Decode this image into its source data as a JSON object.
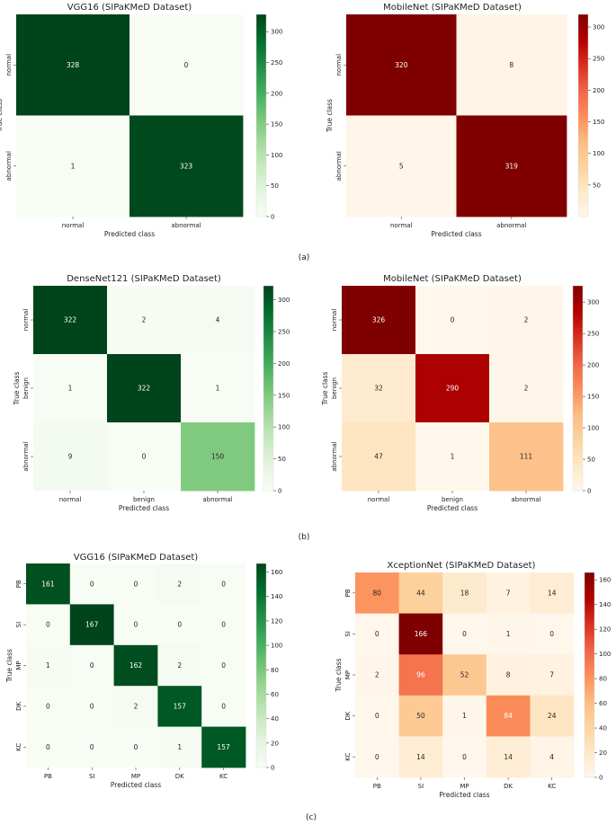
{
  "figure_labels": {
    "a": "(a)",
    "b": "(b)",
    "c": "(c)"
  },
  "chart_data": [
    {
      "type": "heatmap",
      "title": "VGG16 (SIPaKMeD Dataset)",
      "xlabel": "Predicted class",
      "ylabel": "True class",
      "x_categories": [
        "normal",
        "abnormal"
      ],
      "y_categories": [
        "normal",
        "abnormal"
      ],
      "values": [
        [
          328,
          0
        ],
        [
          1,
          323
        ]
      ],
      "colormap": "greens",
      "colorbar": {
        "range": [
          0,
          328
        ],
        "ticks": [
          0,
          50,
          100,
          150,
          200,
          250,
          300
        ]
      }
    },
    {
      "type": "heatmap",
      "title": "MobileNet (SIPaKMeD Dataset)",
      "xlabel": "Predicted class",
      "ylabel": "True class",
      "x_categories": [
        "normal",
        "abnormal"
      ],
      "y_categories": [
        "normal",
        "abnormal"
      ],
      "values": [
        [
          320,
          8
        ],
        [
          5,
          319
        ]
      ],
      "colormap": "oranges-red",
      "colorbar": {
        "range": [
          0,
          320
        ],
        "ticks": [
          50,
          100,
          150,
          200,
          250,
          300
        ]
      }
    },
    {
      "type": "heatmap",
      "title": "DenseNet121 (SIPaKMeD Dataset)",
      "xlabel": "Predicted class",
      "ylabel": "True class",
      "x_categories": [
        "normal",
        "benign",
        "abnormal"
      ],
      "y_categories": [
        "normal",
        "benign",
        "abnormal"
      ],
      "values": [
        [
          322,
          2,
          4
        ],
        [
          1,
          322,
          1
        ],
        [
          9,
          0,
          150
        ]
      ],
      "colormap": "greens",
      "colorbar": {
        "range": [
          0,
          322
        ],
        "ticks": [
          0,
          50,
          100,
          150,
          200,
          250,
          300
        ]
      }
    },
    {
      "type": "heatmap",
      "title": "MobileNet (SIPaKMeD Dataset)",
      "xlabel": "Predicted class",
      "ylabel": "True class",
      "x_categories": [
        "normal",
        "benign",
        "abnormal"
      ],
      "y_categories": [
        "normal",
        "benign",
        "abnormal"
      ],
      "values": [
        [
          326,
          0,
          2
        ],
        [
          32,
          290,
          2
        ],
        [
          47,
          1,
          111
        ]
      ],
      "colormap": "oranges-red",
      "colorbar": {
        "range": [
          0,
          326
        ],
        "ticks": [
          0,
          50,
          100,
          150,
          200,
          250,
          300
        ]
      }
    },
    {
      "type": "heatmap",
      "title": "VGG16 (SIPaKMeD Dataset)",
      "xlabel": "Predicted class",
      "ylabel": "True class",
      "x_categories": [
        "PB",
        "SI",
        "MP",
        "DK",
        "KC"
      ],
      "y_categories": [
        "PB",
        "SI",
        "MP",
        "DK",
        "KC"
      ],
      "values": [
        [
          161,
          0,
          0,
          2,
          0
        ],
        [
          0,
          167,
          0,
          0,
          0
        ],
        [
          1,
          0,
          162,
          2,
          0
        ],
        [
          0,
          0,
          2,
          157,
          0
        ],
        [
          0,
          0,
          0,
          1,
          157
        ]
      ],
      "colormap": "greens",
      "colorbar": {
        "range": [
          0,
          167
        ],
        "ticks": [
          0,
          20,
          40,
          60,
          80,
          100,
          120,
          140,
          160
        ]
      }
    },
    {
      "type": "heatmap",
      "title": "XceptionNet (SIPaKMeD Dataset)",
      "xlabel": "Predicted class",
      "ylabel": "True class",
      "x_categories": [
        "PB",
        "SI",
        "MP",
        "DK",
        "KC"
      ],
      "y_categories": [
        "PB",
        "SI",
        "MP",
        "DK",
        "KC"
      ],
      "values": [
        [
          80,
          44,
          18,
          7,
          14
        ],
        [
          0,
          166,
          0,
          1,
          0
        ],
        [
          2,
          96,
          52,
          8,
          7
        ],
        [
          0,
          50,
          1,
          84,
          24
        ],
        [
          0,
          14,
          0,
          14,
          4
        ]
      ],
      "colormap": "oranges-red",
      "colorbar": {
        "range": [
          0,
          166
        ],
        "ticks": [
          0,
          20,
          40,
          60,
          80,
          100,
          120,
          140,
          160
        ]
      }
    }
  ]
}
